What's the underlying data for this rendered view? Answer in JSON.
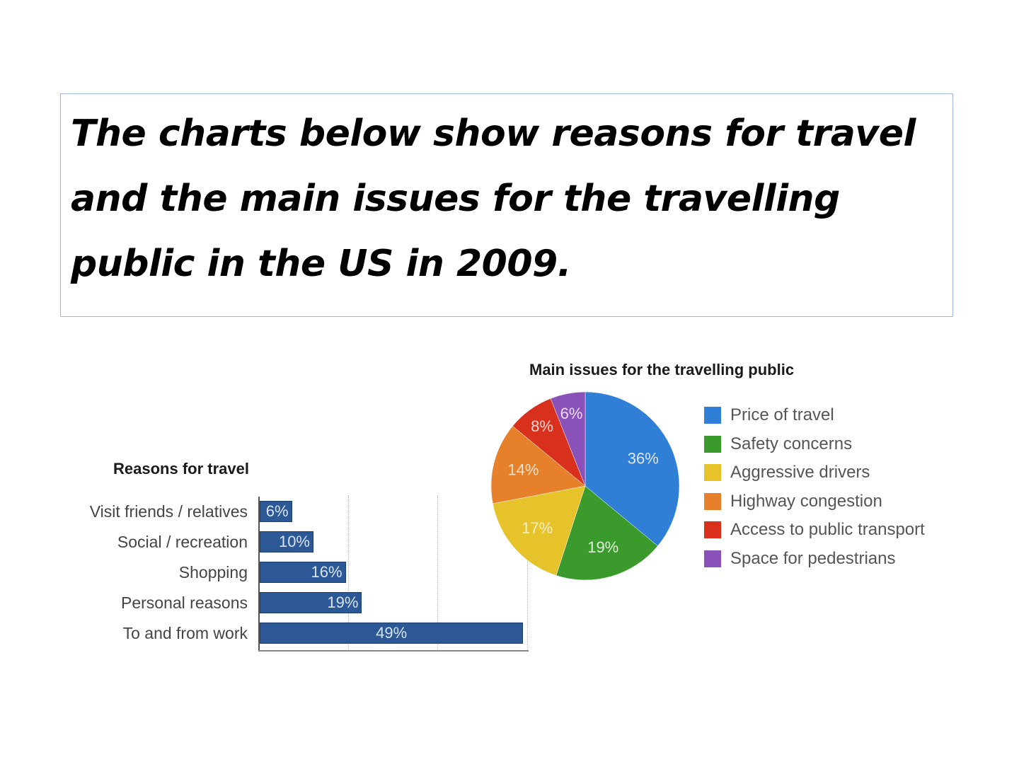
{
  "prompt": {
    "line1": "The charts below show reasons for travel",
    "line2": "and the main issues for the travelling",
    "line3": "public in the US in 2009."
  },
  "chart_data": [
    {
      "type": "bar",
      "title": "Reasons for travel",
      "categories": [
        "Visit friends / relatives",
        "Social / recreation",
        "Shopping",
        "Personal reasons",
        "To and from work"
      ],
      "values": [
        6,
        10,
        16,
        19,
        49
      ],
      "value_labels": [
        "6%",
        "10%",
        "16%",
        "19%",
        "49%"
      ],
      "unit": "%",
      "xlim": [
        0,
        50
      ],
      "orientation": "horizontal",
      "grid": true,
      "color": "#2c5896"
    },
    {
      "type": "pie",
      "title": "Main issues for the travelling public",
      "categories": [
        "Price of travel",
        "Safety concerns",
        "Aggressive drivers",
        "Highway congestion",
        "Access to public transport",
        "Space for pedestrians"
      ],
      "values": [
        36,
        19,
        17,
        14,
        8,
        6
      ],
      "value_labels": [
        "36%",
        "19%",
        "17%",
        "14%",
        "8%",
        "6%"
      ],
      "colors": [
        "#2f7fd6",
        "#3a9a2c",
        "#e6c22b",
        "#e6802a",
        "#d9301e",
        "#8a52b8"
      ],
      "legend_position": "right"
    }
  ]
}
